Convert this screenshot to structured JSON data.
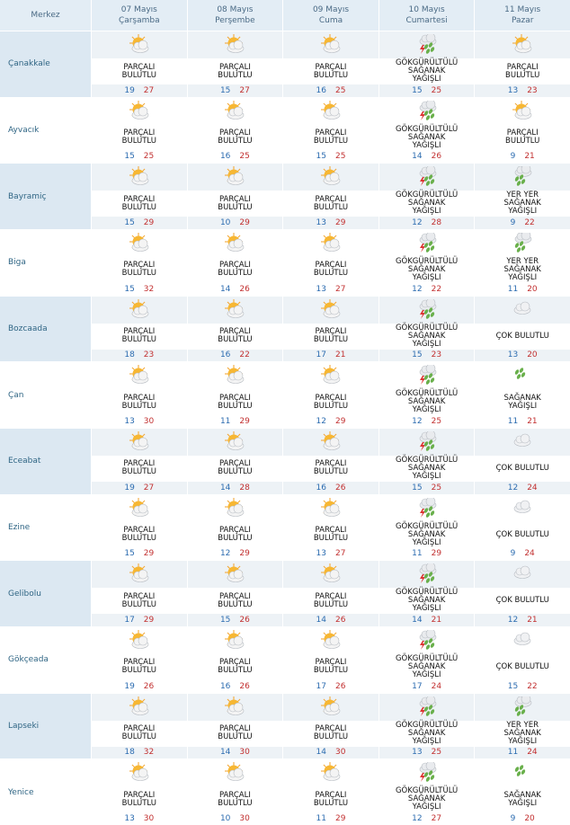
{
  "header": {
    "merkez": "Merkez",
    "days": [
      {
        "date": "07 Mayıs",
        "weekday": "Çarşamba"
      },
      {
        "date": "08 Mayıs",
        "weekday": "Perşembe"
      },
      {
        "date": "09 Mayıs",
        "weekday": "Cuma"
      },
      {
        "date": "10 Mayıs",
        "weekday": "Cumartesi"
      },
      {
        "date": "11 Mayıs",
        "weekday": "Pazar"
      }
    ]
  },
  "rows": [
    {
      "city": "Çanakkale",
      "days": [
        {
          "condition": "PARÇALI BULUTLU",
          "min": 19,
          "max": 27
        },
        {
          "condition": "PARÇALI BULUTLU",
          "min": 15,
          "max": 27
        },
        {
          "condition": "PARÇALI BULUTLU",
          "min": 16,
          "max": 25
        },
        {
          "condition": "GÖKGÜRÜLTÜLÜ SAĞANAK YAĞIŞLI",
          "min": 15,
          "max": 25
        },
        {
          "condition": "PARÇALI BULUTLU",
          "min": 13,
          "max": 23
        }
      ]
    },
    {
      "city": "Ayvacık",
      "days": [
        {
          "condition": "PARÇALI BULUTLU",
          "min": 15,
          "max": 25
        },
        {
          "condition": "PARÇALI BULUTLU",
          "min": 16,
          "max": 25
        },
        {
          "condition": "PARÇALI BULUTLU",
          "min": 15,
          "max": 25
        },
        {
          "condition": "GÖKGÜRÜLTÜLÜ SAĞANAK YAĞIŞLI",
          "min": 14,
          "max": 26
        },
        {
          "condition": "PARÇALI BULUTLU",
          "min": 9,
          "max": 21
        }
      ]
    },
    {
      "city": "Bayramiç",
      "days": [
        {
          "condition": "PARÇALI BULUTLU",
          "min": 15,
          "max": 29
        },
        {
          "condition": "PARÇALI BULUTLU",
          "min": 10,
          "max": 29
        },
        {
          "condition": "PARÇALI BULUTLU",
          "min": 13,
          "max": 29
        },
        {
          "condition": "GÖKGÜRÜLTÜLÜ SAĞANAK YAĞIŞLI",
          "min": 12,
          "max": 28
        },
        {
          "condition": "YER YER SAĞANAK YAĞIŞLI",
          "min": 9,
          "max": 22
        }
      ]
    },
    {
      "city": "Biga",
      "days": [
        {
          "condition": "PARÇALI BULUTLU",
          "min": 15,
          "max": 32
        },
        {
          "condition": "PARÇALI BULUTLU",
          "min": 14,
          "max": 26
        },
        {
          "condition": "PARÇALI BULUTLU",
          "min": 13,
          "max": 27
        },
        {
          "condition": "GÖKGÜRÜLTÜLÜ SAĞANAK YAĞIŞLI",
          "min": 12,
          "max": 22
        },
        {
          "condition": "YER YER SAĞANAK YAĞIŞLI",
          "min": 11,
          "max": 20
        }
      ]
    },
    {
      "city": "Bozcaada",
      "days": [
        {
          "condition": "PARÇALI BULUTLU",
          "min": 18,
          "max": 23
        },
        {
          "condition": "PARÇALI BULUTLU",
          "min": 16,
          "max": 22
        },
        {
          "condition": "PARÇALI BULUTLU",
          "min": 17,
          "max": 21
        },
        {
          "condition": "GÖKGÜRÜLTÜLÜ SAĞANAK YAĞIŞLI",
          "min": 15,
          "max": 23
        },
        {
          "condition": "ÇOK BULUTLU",
          "min": 13,
          "max": 20
        }
      ]
    },
    {
      "city": "Çan",
      "days": [
        {
          "condition": "PARÇALI BULUTLU",
          "min": 13,
          "max": 30
        },
        {
          "condition": "PARÇALI BULUTLU",
          "min": 11,
          "max": 29
        },
        {
          "condition": "PARÇALI BULUTLU",
          "min": 12,
          "max": 29
        },
        {
          "condition": "GÖKGÜRÜLTÜLÜ SAĞANAK YAĞIŞLI",
          "min": 12,
          "max": 25
        },
        {
          "condition": "SAĞANAK YAĞIŞLI",
          "min": 11,
          "max": 21
        }
      ]
    },
    {
      "city": "Eceabat",
      "days": [
        {
          "condition": "PARÇALI BULUTLU",
          "min": 19,
          "max": 27
        },
        {
          "condition": "PARÇALI BULUTLU",
          "min": 14,
          "max": 28
        },
        {
          "condition": "PARÇALI BULUTLU",
          "min": 16,
          "max": 26
        },
        {
          "condition": "GÖKGÜRÜLTÜLÜ SAĞANAK YAĞIŞLI",
          "min": 15,
          "max": 25
        },
        {
          "condition": "ÇOK BULUTLU",
          "min": 12,
          "max": 24
        }
      ]
    },
    {
      "city": "Ezine",
      "days": [
        {
          "condition": "PARÇALI BULUTLU",
          "min": 15,
          "max": 29
        },
        {
          "condition": "PARÇALI BULUTLU",
          "min": 12,
          "max": 29
        },
        {
          "condition": "PARÇALI BULUTLU",
          "min": 13,
          "max": 27
        },
        {
          "condition": "GÖKGÜRÜLTÜLÜ SAĞANAK YAĞIŞLI",
          "min": 11,
          "max": 29
        },
        {
          "condition": "ÇOK BULUTLU",
          "min": 9,
          "max": 24
        }
      ]
    },
    {
      "city": "Gelibolu",
      "days": [
        {
          "condition": "PARÇALI BULUTLU",
          "min": 17,
          "max": 29
        },
        {
          "condition": "PARÇALI BULUTLU",
          "min": 15,
          "max": 26
        },
        {
          "condition": "PARÇALI BULUTLU",
          "min": 14,
          "max": 26
        },
        {
          "condition": "GÖKGÜRÜLTÜLÜ SAĞANAK YAĞIŞLI",
          "min": 14,
          "max": 21
        },
        {
          "condition": "ÇOK BULUTLU",
          "min": 12,
          "max": 21
        }
      ]
    },
    {
      "city": "Gökçeada",
      "days": [
        {
          "condition": "PARÇALI BULUTLU",
          "min": 19,
          "max": 26
        },
        {
          "condition": "PARÇALI BULUTLU",
          "min": 16,
          "max": 26
        },
        {
          "condition": "PARÇALI BULUTLU",
          "min": 17,
          "max": 26
        },
        {
          "condition": "GÖKGÜRÜLTÜLÜ SAĞANAK YAĞIŞLI",
          "min": 17,
          "max": 24
        },
        {
          "condition": "ÇOK BULUTLU",
          "min": 15,
          "max": 22
        }
      ]
    },
    {
      "city": "Lapseki",
      "days": [
        {
          "condition": "PARÇALI BULUTLU",
          "min": 18,
          "max": 32
        },
        {
          "condition": "PARÇALI BULUTLU",
          "min": 14,
          "max": 30
        },
        {
          "condition": "PARÇALI BULUTLU",
          "min": 14,
          "max": 30
        },
        {
          "condition": "GÖKGÜRÜLTÜLÜ SAĞANAK YAĞIŞLI",
          "min": 13,
          "max": 25
        },
        {
          "condition": "YER YER SAĞANAK YAĞIŞLI",
          "min": 11,
          "max": 24
        }
      ]
    },
    {
      "city": "Yenice",
      "days": [
        {
          "condition": "PARÇALI BULUTLU",
          "min": 13,
          "max": 30
        },
        {
          "condition": "PARÇALI BULUTLU",
          "min": 10,
          "max": 30
        },
        {
          "condition": "PARÇALI BULUTLU",
          "min": 11,
          "max": 29
        },
        {
          "condition": "GÖKGÜRÜLTÜLÜ SAĞANAK YAĞIŞLI",
          "min": 12,
          "max": 27
        },
        {
          "condition": "SAĞANAK YAĞIŞLI",
          "min": 9,
          "max": 20
        }
      ]
    }
  ]
}
